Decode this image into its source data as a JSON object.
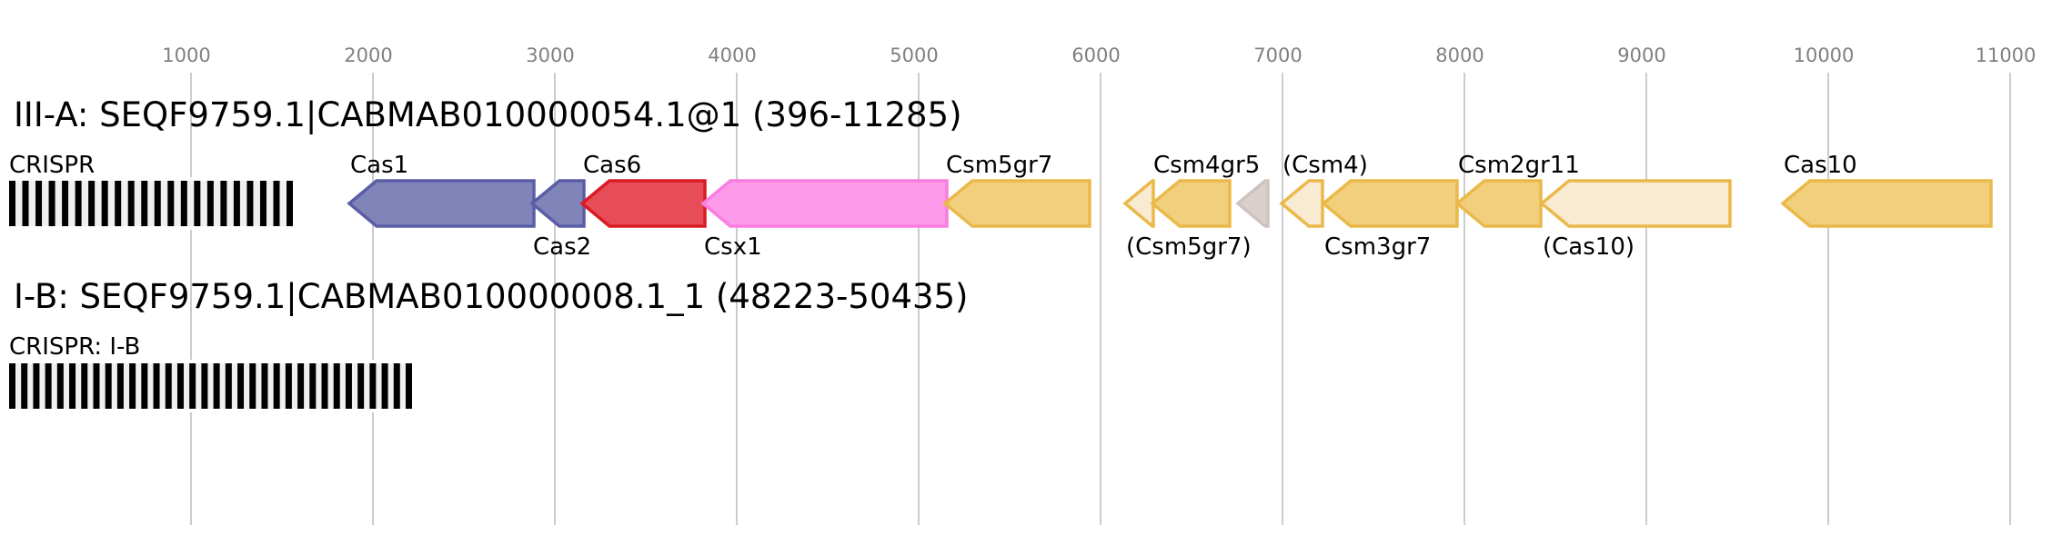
{
  "axis": {
    "ticks": [
      1000,
      2000,
      3000,
      4000,
      5000,
      6000,
      7000,
      8000,
      9000,
      10000,
      11000
    ],
    "grid_color": "#bbbbbb"
  },
  "loci": [
    {
      "title": "III-A: SEQF9759.1|CABMAB010000054.1@1 (396-11285)",
      "crispr": {
        "label": "CRISPR",
        "start": 0,
        "end": 1560,
        "repeats": 22
      },
      "genes": [
        {
          "label": "Cas1",
          "start": 1870,
          "end": 2885,
          "strand": "-",
          "label_pos": "above",
          "fill": "#7a7db5",
          "stroke": "#5b5ea6"
        },
        {
          "label": "Cas2",
          "start": 2875,
          "end": 3160,
          "strand": "-",
          "label_pos": "below",
          "fill": "#7a7db5",
          "stroke": "#5b5ea6"
        },
        {
          "label": "Cas6",
          "start": 3150,
          "end": 3825,
          "strand": "-",
          "label_pos": "above",
          "fill": "#e6434f",
          "stroke": "#d91c24"
        },
        {
          "label": "Csx1",
          "start": 3815,
          "end": 5155,
          "strand": "-",
          "label_pos": "below",
          "fill": "#fd95e8",
          "stroke": "#fb7ddf"
        },
        {
          "label": "Csm5gr7",
          "start": 5145,
          "end": 5940,
          "strand": "-",
          "label_pos": "above",
          "fill": "#f0cc75",
          "stroke": "#ebb94a"
        },
        {
          "label": "(Csm5gr7)",
          "start": 6135,
          "end": 6290,
          "strand": "-",
          "label_pos": "below",
          "fill": "#f8ead0",
          "stroke": "#ebb94a"
        },
        {
          "label": "Csm4gr5",
          "start": 6285,
          "end": 6710,
          "strand": "-",
          "label_pos": "above",
          "fill": "#f0cc75",
          "stroke": "#ebb94a"
        },
        {
          "label": "",
          "start": 6755,
          "end": 6920,
          "strand": "-",
          "label_pos": "none",
          "fill": "#d8ceca",
          "stroke": "#cfc3be"
        },
        {
          "label": "(Csm4)",
          "start": 6995,
          "end": 7220,
          "strand": "-",
          "label_pos": "above",
          "fill": "#f8ead0",
          "stroke": "#ebb94a"
        },
        {
          "label": "Csm3gr7",
          "start": 7225,
          "end": 7960,
          "strand": "-",
          "label_pos": "below",
          "fill": "#f0cc75",
          "stroke": "#ebb94a"
        },
        {
          "label": "Csm2gr11",
          "start": 7960,
          "end": 8420,
          "strand": "-",
          "label_pos": "above",
          "fill": "#f0cc75",
          "stroke": "#ebb94a"
        },
        {
          "label": "(Cas10)",
          "start": 8425,
          "end": 9460,
          "strand": "-",
          "label_pos": "below",
          "fill": "#f8ead0",
          "stroke": "#ebb94a"
        },
        {
          "label": "Cas10",
          "start": 9750,
          "end": 10895,
          "strand": "-",
          "label_pos": "above",
          "fill": "#f0cc75",
          "stroke": "#ebb94a"
        }
      ]
    },
    {
      "title": "I-B: SEQF9759.1|CABMAB010000008.1_1 (48223-50435)",
      "crispr": {
        "label": "CRISPR: I-B",
        "start": 0,
        "end": 2215,
        "repeats": 34
      },
      "genes": []
    }
  ]
}
